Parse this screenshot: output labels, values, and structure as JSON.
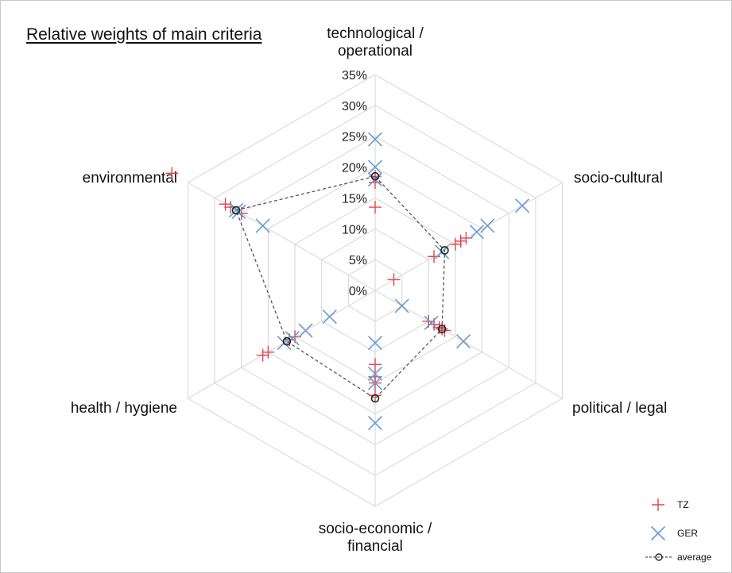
{
  "chart_data": {
    "type": "radar",
    "title": "Relative weights of main criteria",
    "axes": [
      "technological / operational",
      "socio-cultural",
      "political / legal",
      "socio-economic / financial",
      "health / hygiene",
      "environmental"
    ],
    "axis_label_lines": [
      [
        "technological /",
        "operational"
      ],
      [
        "socio-cultural"
      ],
      [
        "political / legal"
      ],
      [
        "socio-economic /",
        "financial"
      ],
      [
        "health / hygiene"
      ],
      [
        "environmental"
      ]
    ],
    "r_ticks": [
      "0%",
      "5%",
      "10%",
      "15%",
      "20%",
      "25%",
      "30%",
      "35%"
    ],
    "r_range": [
      0,
      0.35
    ],
    "grid": true,
    "legend_position": "bottom-right",
    "series": [
      {
        "name": "TZ",
        "marker": "plus",
        "color": "#e0474c",
        "points": [
          [
            0,
            0.135
          ],
          [
            0,
            0.175
          ],
          [
            0,
            0.185
          ],
          [
            1,
            0.035
          ],
          [
            1,
            0.11
          ],
          [
            1,
            0.15
          ],
          [
            1,
            0.16
          ],
          [
            1,
            0.17
          ],
          [
            2,
            0.1
          ],
          [
            2,
            0.11
          ],
          [
            2,
            0.12
          ],
          [
            2,
            0.125
          ],
          [
            2,
            0.13
          ],
          [
            3,
            0.12
          ],
          [
            3,
            0.14
          ],
          [
            3,
            0.15
          ],
          [
            3,
            0.17
          ],
          [
            4,
            0.15
          ],
          [
            4,
            0.16
          ],
          [
            4,
            0.2
          ],
          [
            4,
            0.21
          ],
          [
            5,
            0.25
          ],
          [
            5,
            0.27
          ],
          [
            5,
            0.28
          ],
          [
            5,
            0.38
          ]
        ]
      },
      {
        "name": "GER",
        "marker": "x",
        "color": "#6a9bd1",
        "points": [
          [
            0,
            0.18
          ],
          [
            0,
            0.2
          ],
          [
            0,
            0.245
          ],
          [
            1,
            0.125
          ],
          [
            1,
            0.19
          ],
          [
            1,
            0.21
          ],
          [
            1,
            0.275
          ],
          [
            2,
            0.05
          ],
          [
            2,
            0.105
          ],
          [
            2,
            0.165
          ],
          [
            3,
            0.085
          ],
          [
            3,
            0.135
          ],
          [
            3,
            0.15
          ],
          [
            3,
            0.215
          ],
          [
            4,
            0.085
          ],
          [
            4,
            0.13
          ],
          [
            4,
            0.155
          ],
          [
            4,
            0.17
          ],
          [
            5,
            0.21
          ],
          [
            5,
            0.26
          ],
          [
            5,
            0.255
          ]
        ]
      },
      {
        "name": "average",
        "marker": "circle",
        "color": "#555555",
        "line": "dashed",
        "values": [
          0.185,
          0.13,
          0.125,
          0.175,
          0.165,
          0.26
        ]
      }
    ]
  }
}
